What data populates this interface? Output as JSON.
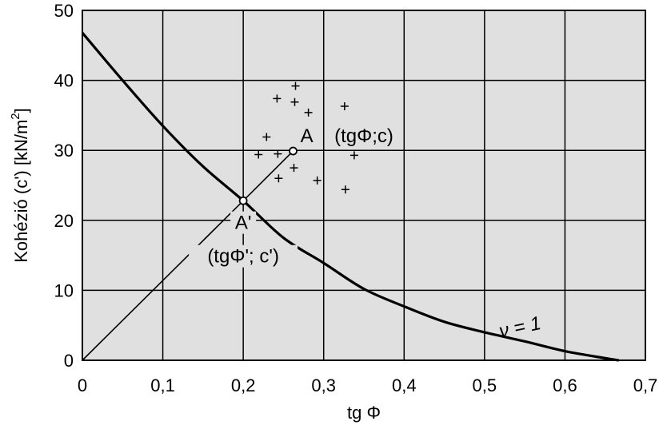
{
  "chart_data": {
    "type": "scatter",
    "xlabel": "tg Φ",
    "ylabel": "Kohézió (c') [kN/m",
    "ylabel_sup": "2",
    "ylabel_close": "]",
    "xlim": [
      0,
      0.7
    ],
    "ylim": [
      0,
      50
    ],
    "x_ticks": [
      "0",
      "0,1",
      "0,2",
      "0,3",
      "0,4",
      "0,5",
      "0,6",
      "0,7"
    ],
    "x_tick_values": [
      0,
      0.1,
      0.2,
      0.3,
      0.4,
      0.5,
      0.6,
      0.7
    ],
    "y_ticks": [
      "0",
      "10",
      "20",
      "30",
      "40",
      "50"
    ],
    "y_tick_values": [
      0,
      10,
      20,
      30,
      40,
      50
    ],
    "grid": true,
    "background_color": "#e0e0e0",
    "series": [
      {
        "name": "ν = 1",
        "kind": "line",
        "x": [
          0,
          0.05,
          0.1,
          0.15,
          0.2,
          0.25,
          0.3,
          0.35,
          0.4,
          0.45,
          0.5,
          0.55,
          0.6,
          0.65,
          0.667
        ],
        "y": [
          46.8,
          40.0,
          33.5,
          27.7,
          22.8,
          17.5,
          13.9,
          10.2,
          7.7,
          5.5,
          4.0,
          2.7,
          1.3,
          0.3,
          0
        ]
      },
      {
        "kind": "line",
        "x": [
          0,
          0.2,
          0.262
        ],
        "y": [
          0,
          22.8,
          29.9
        ]
      },
      {
        "kind": "markers",
        "x": [
          0.242,
          0.265,
          0.326,
          0.264,
          0.281,
          0.229,
          0.219,
          0.243,
          0.338,
          0.263,
          0.244,
          0.292,
          0.327
        ],
        "y": [
          37.4,
          39.2,
          36.3,
          36.9,
          35.4,
          31.9,
          29.4,
          29.5,
          29.3,
          27.5,
          26.0,
          25.7,
          24.4
        ]
      },
      {
        "kind": "points",
        "x": [
          0.262,
          0.2
        ],
        "y": [
          29.9,
          22.8
        ]
      }
    ],
    "annotations": [
      {
        "id": "A",
        "text": "A",
        "x": 0.279,
        "y": 31.5
      },
      {
        "id": "A-coords",
        "text": "(tgΦ;c)",
        "x": 0.35,
        "y": 31.5
      },
      {
        "id": "A-prime",
        "text": "A'",
        "x": 0.2,
        "y": 19.1
      },
      {
        "id": "A-prime-coords",
        "text": "(tgΦ'; c')",
        "x": 0.2,
        "y": 14.3
      },
      {
        "id": "nu-label",
        "text": "ν = 1",
        "x": 0.545,
        "y": 4.2
      }
    ]
  }
}
